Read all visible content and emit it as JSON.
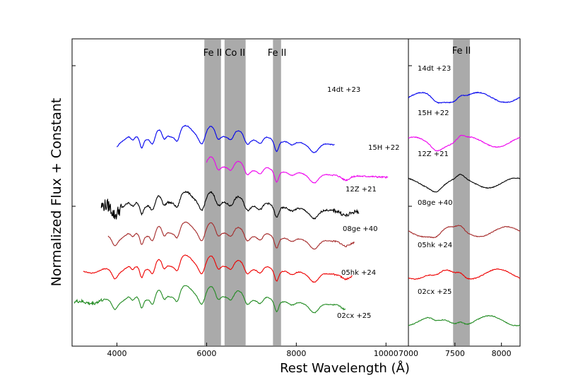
{
  "chart_data": {
    "type": "line",
    "ylabel": "Normalized Flux + Constant",
    "xlabel": "Rest Wavelength (Å)",
    "panels": [
      {
        "name": "main",
        "xlim": [
          3000,
          10500
        ],
        "xticks": [
          4000,
          6000,
          8000,
          10000
        ],
        "bands": [
          {
            "label": "Fe II",
            "range": [
              5950,
              6320
            ]
          },
          {
            "label": "Co II",
            "range": [
              6400,
              6870
            ]
          },
          {
            "label": "Fe II",
            "range": [
              7480,
              7660
            ]
          }
        ]
      },
      {
        "name": "inset",
        "xlim": [
          7000,
          8200
        ],
        "xticks": [
          7000,
          7500,
          8000
        ],
        "bands": [
          {
            "label": "Fe II",
            "range": [
              7480,
              7660
            ]
          }
        ]
      }
    ],
    "series": [
      {
        "name": "14dt",
        "label": "14dt +23",
        "color": "#0000ee",
        "x_range": [
          4000,
          8850
        ],
        "offset": 6.9
      },
      {
        "name": "15H",
        "label": "15H +22",
        "color": "#ee00ee",
        "x_range": [
          6000,
          10050
        ],
        "offset": 5.7
      },
      {
        "name": "12Z",
        "label": "12Z +21",
        "color": "#000000",
        "x_range": [
          3650,
          9400
        ],
        "offset": 4.3
      },
      {
        "name": "08ge",
        "label": "08ge +40",
        "color": "#a52a2a",
        "x_range": [
          3800,
          9300
        ],
        "offset": 3.1
      },
      {
        "name": "05hk",
        "label": "05hk +24",
        "color": "#ee0000",
        "x_range": [
          3250,
          9250
        ],
        "offset": 1.8
      },
      {
        "name": "02cx",
        "label": "02cx +25",
        "color": "#228b22",
        "x_range": [
          3050,
          9100
        ],
        "offset": 0.6
      }
    ]
  }
}
